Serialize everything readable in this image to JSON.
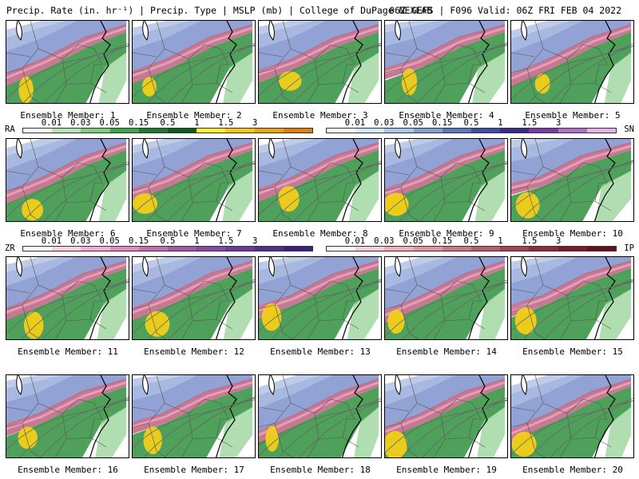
{
  "header": {
    "left": "Precip. Rate (in. hr⁻¹) | Precip. Type | MSLP (mb) | College of DuPage NEXLAB",
    "right": "06Z GEFS | F096 Valid: 06Z FRI FEB 04 2022"
  },
  "members": [
    {
      "label": "Ensemble Member: 1"
    },
    {
      "label": "Ensemble Member: 2"
    },
    {
      "label": "Ensemble Member: 3"
    },
    {
      "label": "Ensemble Member: 4"
    },
    {
      "label": "Ensemble Member: 5"
    },
    {
      "label": "Ensemble Member: 6"
    },
    {
      "label": "Ensemble Member: 7"
    },
    {
      "label": "Ensemble Member: 8"
    },
    {
      "label": "Ensemble Member: 9"
    },
    {
      "label": "Ensemble Member: 10"
    },
    {
      "label": "Ensemble Member: 11"
    },
    {
      "label": "Ensemble Member: 12"
    },
    {
      "label": "Ensemble Member: 13"
    },
    {
      "label": "Ensemble Member: 14"
    },
    {
      "label": "Ensemble Member: 15"
    },
    {
      "label": "Ensemble Member: 16"
    },
    {
      "label": "Ensemble Member: 17"
    },
    {
      "label": "Ensemble Member: 18"
    },
    {
      "label": "Ensemble Member: 19"
    },
    {
      "label": "Ensemble Member: 20"
    }
  ],
  "legends": {
    "ra": {
      "type": "RA",
      "ticks": [
        "0.01",
        "0.03",
        "0.05",
        "0.15",
        "0.5",
        "1",
        "1.5",
        "3"
      ],
      "colors": [
        "#ffffff",
        "#b7e4b4",
        "#7fcc7f",
        "#3fa64a",
        "#1f7a2e",
        "#0f5a1e",
        "#ffee33",
        "#f5c816",
        "#e8a410",
        "#e07e10"
      ]
    },
    "sn": {
      "type": "SN",
      "ticks": [
        "0.01",
        "0.03",
        "0.05",
        "0.15",
        "0.5",
        "1",
        "1.5",
        "3"
      ],
      "colors": [
        "#ffffff",
        "#d6e8f5",
        "#a8c8e8",
        "#7fa2d2",
        "#5c78be",
        "#3e4ea6",
        "#3a2a8a",
        "#7a3aa8",
        "#b070c8",
        "#e4b4e4"
      ]
    },
    "zr": {
      "type": "ZR",
      "ticks": [
        "0.01",
        "0.03",
        "0.05",
        "0.15",
        "0.5",
        "1",
        "1.5",
        "3"
      ],
      "colors": [
        "#ffffff",
        "#f8d4e4",
        "#f0b0d0",
        "#e08cc0",
        "#c070b0",
        "#a458a8",
        "#8848a4",
        "#6a3a9c",
        "#50308e",
        "#3a1e80"
      ]
    },
    "ip": {
      "type": "IP",
      "ticks": [
        "0.01",
        "0.03",
        "0.05",
        "0.15",
        "0.5",
        "1",
        "1.5",
        "3"
      ],
      "colors": [
        "#ffffff",
        "#f4d2d6",
        "#eab2ba",
        "#de96a2",
        "#cc7884",
        "#b85c6c",
        "#a44454",
        "#902c3c",
        "#7a1a2a",
        "#66101c"
      ]
    }
  }
}
